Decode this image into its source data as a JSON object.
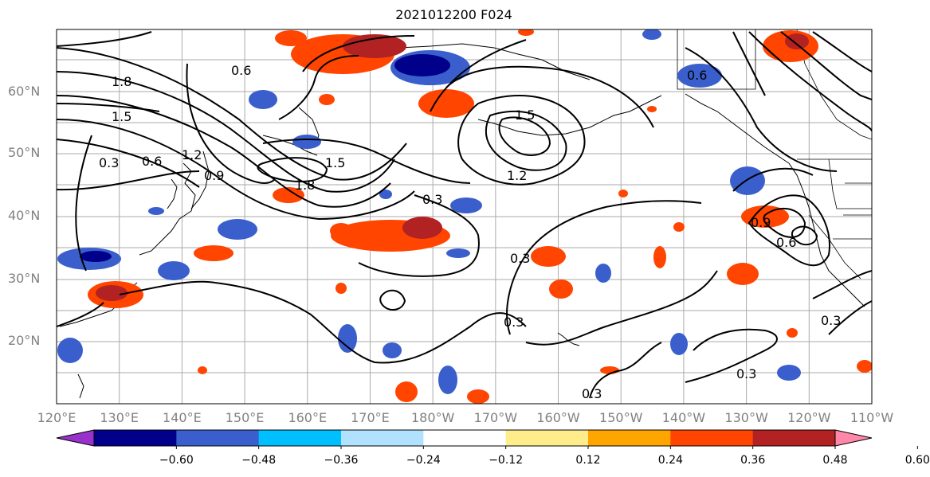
{
  "title": "2021012200 F024",
  "lat_labels": [
    "60°N",
    "50°N",
    "40°N",
    "30°N",
    "20°N"
  ],
  "lon_labels": [
    "120°E",
    "130°E",
    "140°E",
    "150°E",
    "160°E",
    "170°E",
    "180°W",
    "170°W",
    "160°W",
    "150°W",
    "140°W",
    "130°W",
    "120°W",
    "110°W"
  ],
  "contour_labels": [
    "1.8",
    "1.5",
    "1.2",
    "0.9",
    "0.6",
    "0.3",
    "1.8",
    "1.5",
    "1.5",
    "1.2",
    "0.6",
    "0.3",
    "0.3",
    "0.3",
    "0.3",
    "0.3",
    "0.6",
    "0.9",
    "0.6",
    "0.3"
  ],
  "colorbar": {
    "ticks": [
      "−0.60",
      "−0.48",
      "−0.36",
      "−0.24",
      "−0.12",
      "0.12",
      "0.24",
      "0.36",
      "0.48",
      "0.60"
    ],
    "colors": [
      "#9932cc",
      "#00008b",
      "#3a5fcd",
      "#00bfff",
      "#b0e2ff",
      "#ffffff",
      "#ffec8b",
      "#ffa500",
      "#ff4500",
      "#b22222",
      "#ff88aa"
    ]
  }
}
